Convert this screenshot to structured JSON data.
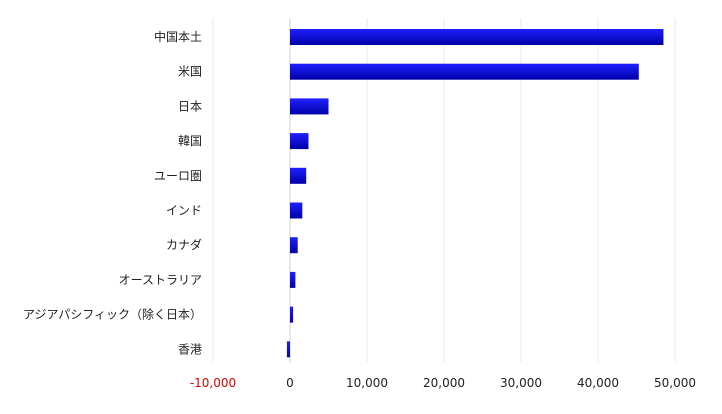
{
  "chart_data": {
    "type": "bar",
    "orientation": "horizontal",
    "categories": [
      "中国本土",
      "米国",
      "日本",
      "韓国",
      "ユーロ圏",
      "インド",
      "カナダ",
      "オーストラリア",
      "アジアパシフィック（除く日本）",
      "香港"
    ],
    "values": [
      48500,
      45300,
      5000,
      2400,
      2100,
      1600,
      1000,
      700,
      400,
      -400
    ],
    "xlim": [
      -10000,
      50000
    ],
    "xticks": [
      -10000,
      0,
      10000,
      20000,
      30000,
      40000,
      50000
    ],
    "xtick_labels": [
      "-10,000",
      "0",
      "10,000",
      "20,000",
      "30,000",
      "40,000",
      "50,000"
    ],
    "title": "",
    "xlabel": "",
    "ylabel": "",
    "grid": true,
    "legend": "none"
  },
  "colors": {
    "bar_dark": "#0000a8",
    "bar_light": "#2020ff",
    "negative_tick": "#e00000",
    "text": "#222222"
  }
}
